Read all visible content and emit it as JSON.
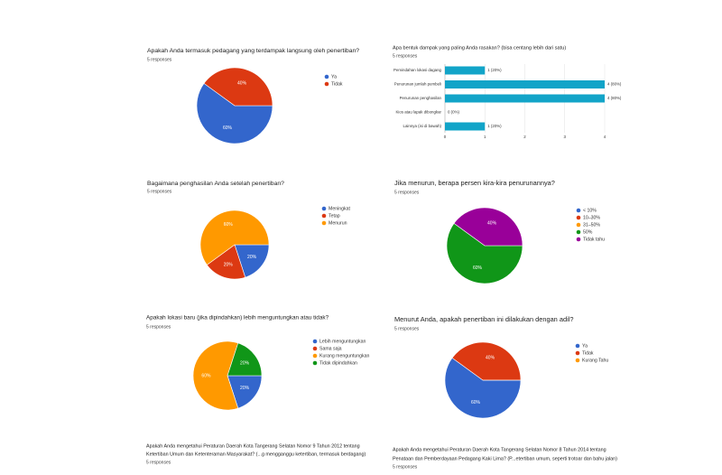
{
  "chart_data": [
    {
      "type": "pie",
      "title": "Apakah Anda termasuk pedagang yang terdampak langsung oleh penertiban?",
      "subtitle": "5 responses",
      "categories": [
        "Ya",
        "Tidak"
      ],
      "values": [
        60,
        40
      ],
      "value_labels": [
        "60%",
        "40%"
      ],
      "colors": [
        "#3366cc",
        "#dc3912"
      ]
    },
    {
      "type": "bar",
      "title": "Apa bentuk dampak yang paling Anda rasakan? (bisa centang lebih dari satu)",
      "subtitle": "5 responses",
      "categories": [
        "Pemindahan lokasi dagang",
        "Penurunan jumlah pembeli",
        "Penurunan penghasilan",
        "Kios atau lapak dibongkar",
        "Lainnya (isi di bawah)"
      ],
      "values": [
        1,
        4,
        4,
        0,
        1
      ],
      "value_labels": [
        "1 (20%)",
        "4 (80%)",
        "4 (80%)",
        "0 (0%)",
        "1 (20%)"
      ],
      "color": "#12a4c8",
      "xlim": [
        0,
        4
      ],
      "xticks": [
        0,
        1,
        2,
        3,
        4
      ],
      "grid": true
    },
    {
      "type": "pie",
      "title": "Bagaimana penghasilan Anda setelah penertiban?",
      "subtitle": "5 responses",
      "categories": [
        "Meningkat",
        "Tetap",
        "Menurun"
      ],
      "values": [
        20,
        20,
        60
      ],
      "value_labels": [
        "20%",
        "20%",
        "60%"
      ],
      "colors": [
        "#3366cc",
        "#dc3912",
        "#ff9900"
      ]
    },
    {
      "type": "pie",
      "title": "Jika menurun, berapa persen kira-kira penurunannya?",
      "subtitle": "5 responses",
      "categories": [
        "< 10%",
        "10–30%",
        "31–50%",
        "50%",
        "Tidak tahu"
      ],
      "values": [
        0,
        0,
        0,
        60,
        40
      ],
      "value_labels": [
        null,
        null,
        null,
        "60%",
        "40%"
      ],
      "colors": [
        "#3366cc",
        "#dc3912",
        "#ff9900",
        "#109618",
        "#990099"
      ]
    },
    {
      "type": "pie",
      "title": "Apakah lokasi baru (jika dipindahkan) lebih menguntungkan atau tidak?",
      "subtitle": "5 responses",
      "categories": [
        "Lebih menguntungkan",
        "Sama saja",
        "Kurang menguntungkan",
        "Tidak dipindahkan"
      ],
      "values": [
        20,
        0,
        60,
        20
      ],
      "value_labels": [
        "20%",
        null,
        "60%",
        "20%"
      ],
      "colors": [
        "#3366cc",
        "#dc3912",
        "#ff9900",
        "#109618"
      ]
    },
    {
      "type": "pie",
      "title": "Menurut Anda, apakah penertiban ini dilakukan dengan adil?",
      "subtitle": "5 responses",
      "categories": [
        "Ya",
        "Tidak",
        "Kurang Tahu"
      ],
      "values": [
        60,
        40,
        0
      ],
      "value_labels": [
        "60%",
        "40%",
        null
      ],
      "colors": [
        "#3366cc",
        "#dc3912",
        "#ff9900"
      ]
    }
  ],
  "partial_questions": [
    {
      "title_lines": [
        "Apakah Anda mengetahui Peraturan Daerah Kota Tangerang Selatan Nomor 9 Tahun 2012 tentang",
        "Ketertiban Umum dan Ketenteraman Masyarakat? (...g mengganggu ketertiban, termasuk berdagang)"
      ],
      "subtitle": "5 responses"
    },
    {
      "title_lines": [
        "Apakah Anda mengetahui Peraturan Daerah Kota Tangerang Selatan Nomor 8 Tahun 2014 tentang",
        "Penataan dan Pemberdayaan Pedagang Kaki Lima? (P...etertiban umum, seperti trotoar dan bahu jalan)"
      ],
      "subtitle": "5 responses"
    }
  ]
}
